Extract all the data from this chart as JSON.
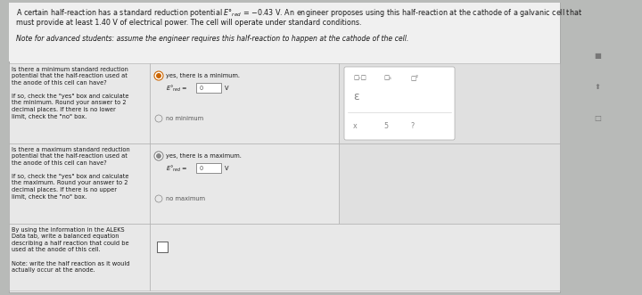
{
  "bg_color": "#b8bab8",
  "panel_bg": "#e8e8e8",
  "white": "#f5f5f5",
  "cell_bg": "#e0e0e0",
  "header_line1": "A certain half-reaction has a standard reduction potential E°ₐₙ = −0.43 V. An engineer proposes using this half-reaction at the cathode of a galvanic cell that",
  "header_line2": "must provide at least 1.40 V of electrical power. The cell will operate under standard conditions.",
  "header_line3": "Note for advanced students: assume the engineer requires this half-reaction to happen at the cathode of the cell.",
  "row1_left": "Is there a minimum standard reduction\npotential that the half-reaction used at\nthe anode of this cell can have?\n\nIf so, check the \"yes\" box and calculate\nthe minimum. Round your answer to 2\ndecimal places. If there is no lower\nlimit, check the \"no\" box.",
  "row1_radio": "yes, there is a minimum.",
  "row1_no": "no minimum",
  "row2_left": "Is there a maximum standard reduction\npotential that the half-reaction used at\nthe anode of this cell can have?\n\nIf so, check the \"yes\" box and calculate\nthe maximum. Round your answer to 2\ndecimal places. If there is no upper\nlimit, check the \"no\" box.",
  "row2_radio": "yes, there is a maximum.",
  "row2_no": "no maximum",
  "row3_left": "By using the information in the ALEKS\nData tab, write a balanced equation\ndescribing a half reaction that could be\nused at the anode of this cell.\n\nNote: write the half reaction as it would\nactually occur at the anode.",
  "font_header": 5.8,
  "font_body": 5.2,
  "font_small": 4.8
}
